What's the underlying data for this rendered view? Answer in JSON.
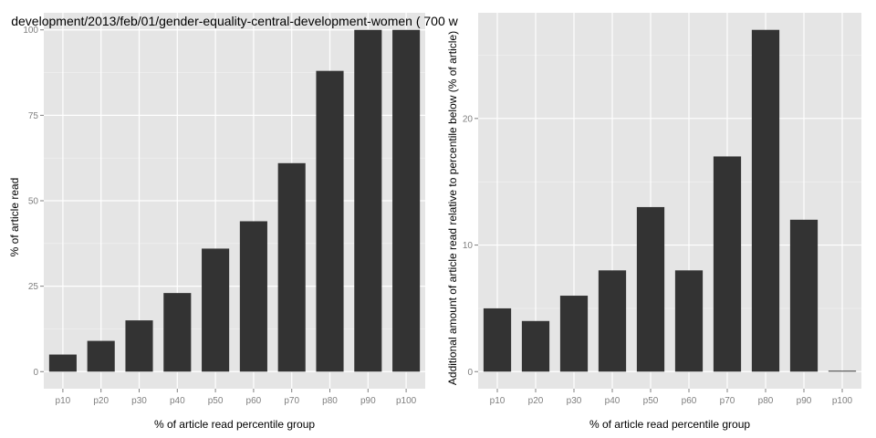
{
  "chart_data": [
    {
      "type": "bar",
      "title": "development/2013/feb/01/gender-equality-central-development-women ( 700 w",
      "xlabel": "% of article read percentile group",
      "ylabel": "% of article read",
      "categories": [
        "p10",
        "p20",
        "p30",
        "p40",
        "p50",
        "p60",
        "p70",
        "p80",
        "p90",
        "p100"
      ],
      "values": [
        5,
        9,
        15,
        23,
        36,
        44,
        61,
        88,
        100,
        100
      ],
      "ylim": [
        -5,
        105
      ],
      "yticks": [
        0,
        25,
        50,
        75,
        100
      ],
      "grid": true,
      "colors": {
        "panel": "#e5e5e5",
        "bar": "#333333",
        "grid_major": "#ffffff",
        "grid_minor": "#f2f2f2"
      }
    },
    {
      "type": "bar",
      "title": "",
      "xlabel": "% of article read percentile group",
      "ylabel": "Additional amount of article read relative to percentile below (% of article)",
      "categories": [
        "p10",
        "p20",
        "p30",
        "p40",
        "p50",
        "p60",
        "p70",
        "p80",
        "p90",
        "p100"
      ],
      "values": [
        5,
        4,
        6,
        8,
        13,
        8,
        17,
        27,
        12,
        0
      ],
      "ylim": [
        -1.35,
        28.35
      ],
      "yticks": [
        0,
        10,
        20
      ],
      "grid": true,
      "colors": {
        "panel": "#e5e5e5",
        "bar": "#333333",
        "grid_major": "#ffffff",
        "grid_minor": "#f2f2f2"
      }
    }
  ]
}
